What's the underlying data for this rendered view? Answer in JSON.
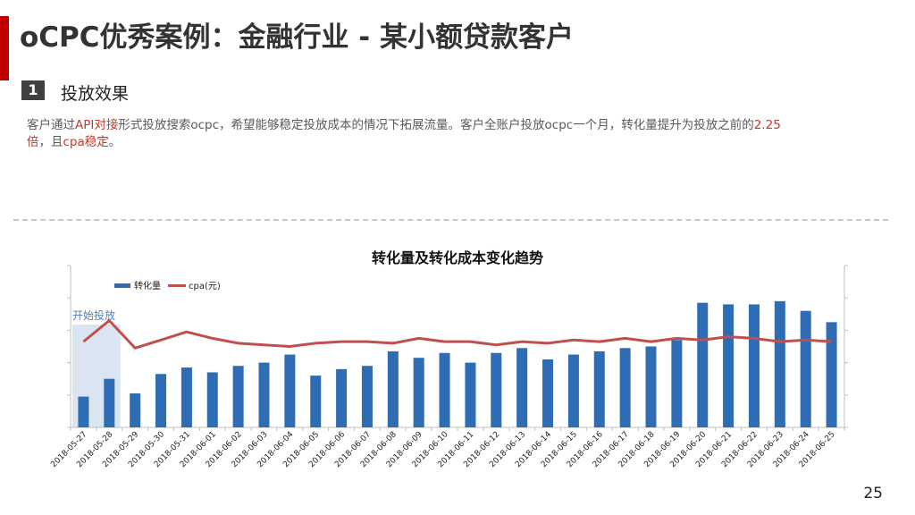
{
  "slide": {
    "title": "oCPC优秀案例：金融行业 - 某小额贷款客户",
    "section_number": "1",
    "section_title": "投放效果",
    "page_number": "25"
  },
  "description": [
    {
      "text": "客户通过",
      "hl": false
    },
    {
      "text": "API对接",
      "hl": true
    },
    {
      "text": "形式投放搜索ocpc，希望能够稳定投放成本的情况下拓展流量。客户全账户投放ocpc一个月，转化量提升为投放之前的",
      "hl": false
    },
    {
      "text": "2.25倍",
      "hl": true
    },
    {
      "text": "，且",
      "hl": false
    },
    {
      "text": "cpa稳定",
      "hl": true
    },
    {
      "text": "。",
      "hl": false
    }
  ],
  "colors": {
    "accent": "#c00000",
    "bar": "#2e6db4",
    "line": "#c0504d",
    "highlight_region": "#dbe4f1",
    "annotation_text": "#4f81bd"
  },
  "chart_data": {
    "type": "bar",
    "title": "转化量及转化成本变化趋势",
    "categories": [
      "2018-05-27",
      "2018-05-28",
      "2018-05-29",
      "2018-05-30",
      "2018-05-31",
      "2018-06-01",
      "2018-06-02",
      "2018-06-03",
      "2018-06-04",
      "2018-06-05",
      "2018-06-06",
      "2018-06-07",
      "2018-06-08",
      "2018-06-09",
      "2018-06-10",
      "2018-06-11",
      "2018-06-12",
      "2018-06-13",
      "2018-06-14",
      "2018-06-15",
      "2018-06-16",
      "2018-06-17",
      "2018-06-18",
      "2018-06-19",
      "2018-06-20",
      "2018-06-21",
      "2018-06-22",
      "2018-06-23",
      "2018-06-24",
      "2018-06-25"
    ],
    "series": [
      {
        "name": "转化量",
        "type": "bar",
        "axis": "left",
        "values": [
          19,
          30,
          21,
          33,
          37,
          34,
          38,
          40,
          45,
          32,
          36,
          38,
          47,
          43,
          46,
          40,
          46,
          49,
          42,
          45,
          47,
          49,
          50,
          54,
          77,
          76,
          76,
          78,
          72,
          65
        ]
      },
      {
        "name": "cpa(元)",
        "type": "line",
        "axis": "right",
        "values": [
          53,
          66,
          49,
          54,
          59,
          55,
          52,
          51,
          50,
          52,
          53,
          53,
          52,
          55,
          53,
          53,
          51,
          53,
          52,
          54,
          53,
          55,
          53,
          55,
          54,
          56,
          55,
          53,
          54,
          53
        ]
      }
    ],
    "ylim_left": [
      0,
      100
    ],
    "ylim_right": [
      0,
      100
    ],
    "annotation": {
      "text": "开始投放",
      "category_range": [
        "2018-05-27",
        "2018-05-28"
      ]
    },
    "legend": "top-left",
    "ytick_labels_visible": false
  }
}
